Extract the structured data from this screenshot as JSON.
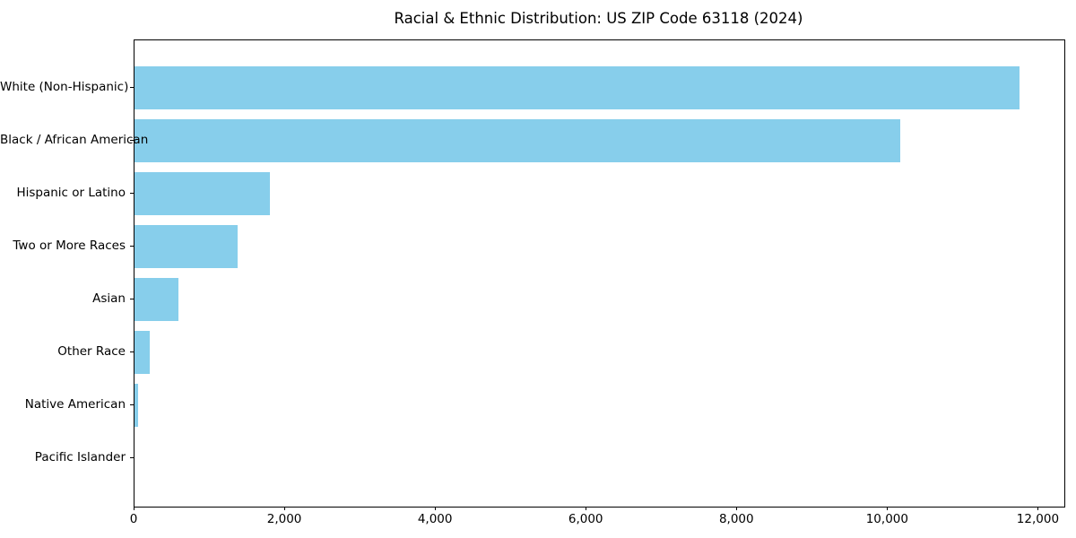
{
  "chart_data": {
    "type": "bar",
    "orientation": "horizontal",
    "title": "Racial & Ethnic Distribution: US ZIP Code 63118 (2024)",
    "categories": [
      "White (Non-Hispanic)",
      "Black / African American",
      "Hispanic or Latino",
      "Two or More Races",
      "Asian",
      "Other Race",
      "Native American",
      "Pacific Islander"
    ],
    "values": [
      11750,
      10160,
      1800,
      1370,
      580,
      200,
      50,
      0
    ],
    "xlabel": "",
    "ylabel": "",
    "xlim": [
      0,
      12340
    ],
    "x_ticks": [
      0,
      2000,
      4000,
      6000,
      8000,
      10000,
      12000
    ],
    "x_tick_labels": [
      "0",
      "2,000",
      "4,000",
      "6,000",
      "8,000",
      "10,000",
      "12,000"
    ],
    "bar_color": "#87CEEB",
    "spine_color": "#000000",
    "grid": false,
    "legend": null
  }
}
